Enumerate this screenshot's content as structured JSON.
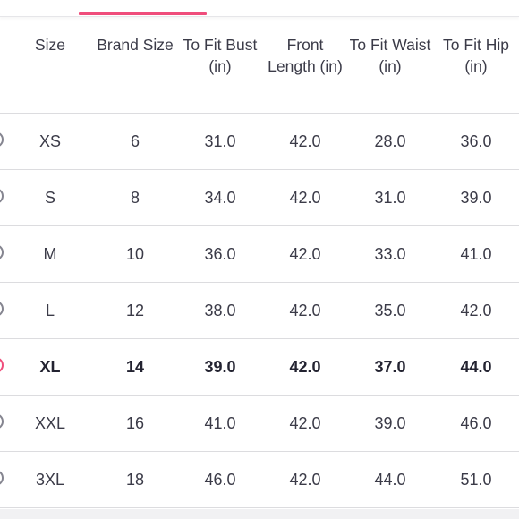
{
  "header": {
    "size": "Size",
    "brand_size": "Brand Size",
    "to_fit_bust": "To Fit Bust (in)",
    "front_length": "Front Length (in)",
    "to_fit_waist": "To Fit Waist (in)",
    "to_fit_hip": "To Fit Hip (in)"
  },
  "accent_color": "#ef4d7b",
  "selected_size": "XL",
  "rows": [
    {
      "size": "XS",
      "brand_size": "6",
      "bust": "31.0",
      "front_length": "42.0",
      "waist": "28.0",
      "hip": "36.0"
    },
    {
      "size": "S",
      "brand_size": "8",
      "bust": "34.0",
      "front_length": "42.0",
      "waist": "31.0",
      "hip": "39.0"
    },
    {
      "size": "M",
      "brand_size": "10",
      "bust": "36.0",
      "front_length": "42.0",
      "waist": "33.0",
      "hip": "41.0"
    },
    {
      "size": "L",
      "brand_size": "12",
      "bust": "38.0",
      "front_length": "42.0",
      "waist": "35.0",
      "hip": "42.0"
    },
    {
      "size": "XL",
      "brand_size": "14",
      "bust": "39.0",
      "front_length": "42.0",
      "waist": "37.0",
      "hip": "44.0"
    },
    {
      "size": "XXL",
      "brand_size": "16",
      "bust": "41.0",
      "front_length": "42.0",
      "waist": "39.0",
      "hip": "46.0"
    },
    {
      "size": "3XL",
      "brand_size": "18",
      "bust": "46.0",
      "front_length": "42.0",
      "waist": "44.0",
      "hip": "51.0"
    }
  ]
}
